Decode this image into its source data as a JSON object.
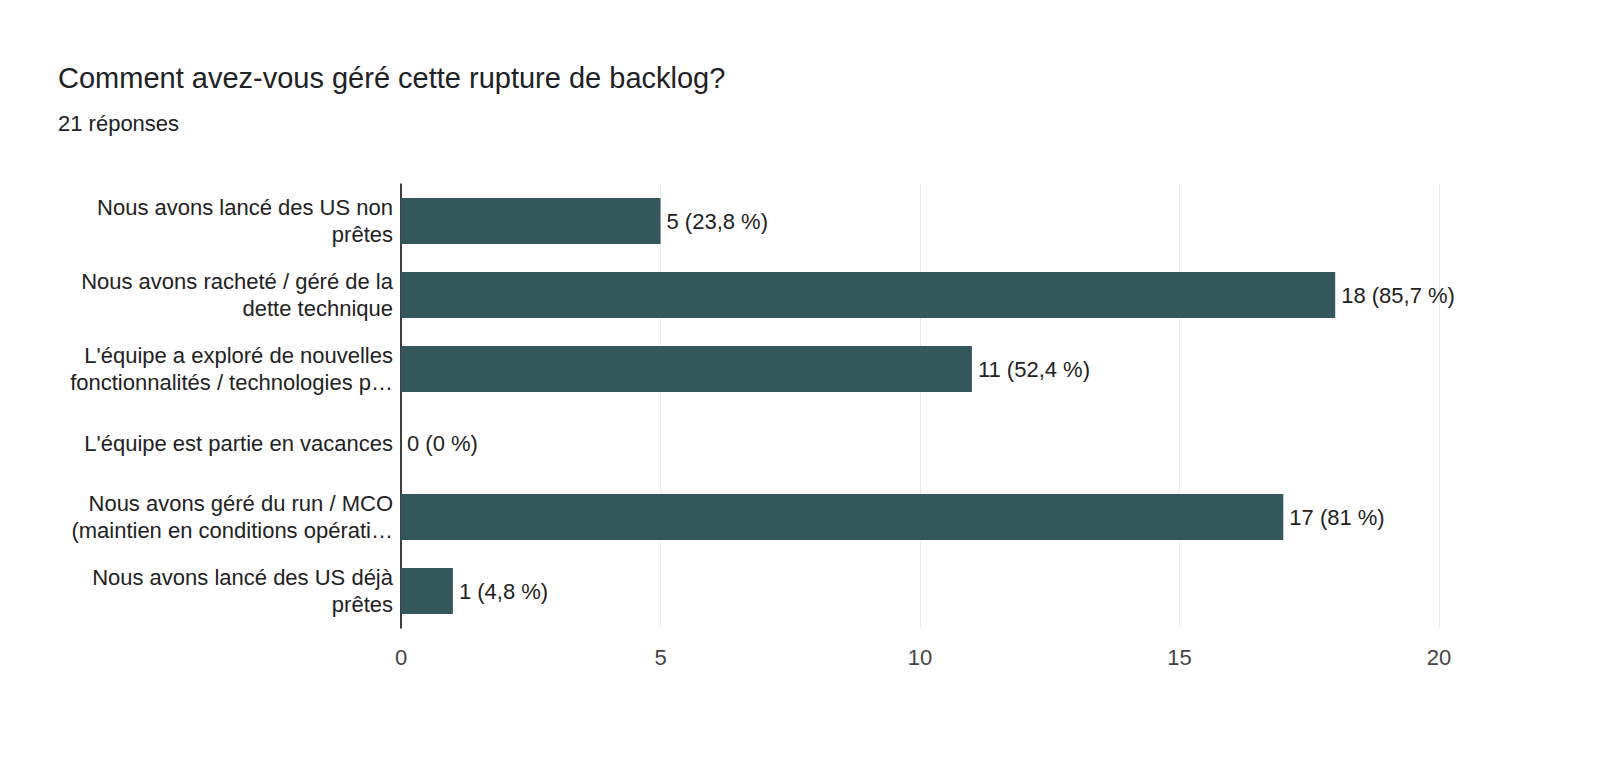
{
  "chart_data": {
    "type": "bar",
    "orientation": "horizontal",
    "title": "Comment avez-vous géré cette rupture de backlog?",
    "subtitle": "21 réponses",
    "categories": [
      "Nous avons lancé des US non\nprêtes",
      "Nous avons racheté / géré de la\ndette technique",
      "L'équipe a exploré de nouvelles\nfonctionnalités / technologies p…",
      "L'équipe est partie en vacances",
      "Nous avons géré du run / MCO\n(maintien en conditions opérati…",
      "Nous avons lancé des US déjà\nprêtes"
    ],
    "values": [
      5,
      18,
      11,
      0,
      17,
      1
    ],
    "value_labels": [
      "5 (23,8 %)",
      "18 (85,7 %)",
      "11 (52,4 %)",
      "0 (0 %)",
      "17 (81 %)",
      "1 (4,8 %)"
    ],
    "data_labels": true,
    "color": "#34575c",
    "xlim": [
      0,
      20
    ],
    "xticks": [
      0,
      5,
      10,
      15,
      20
    ],
    "grid": true
  }
}
